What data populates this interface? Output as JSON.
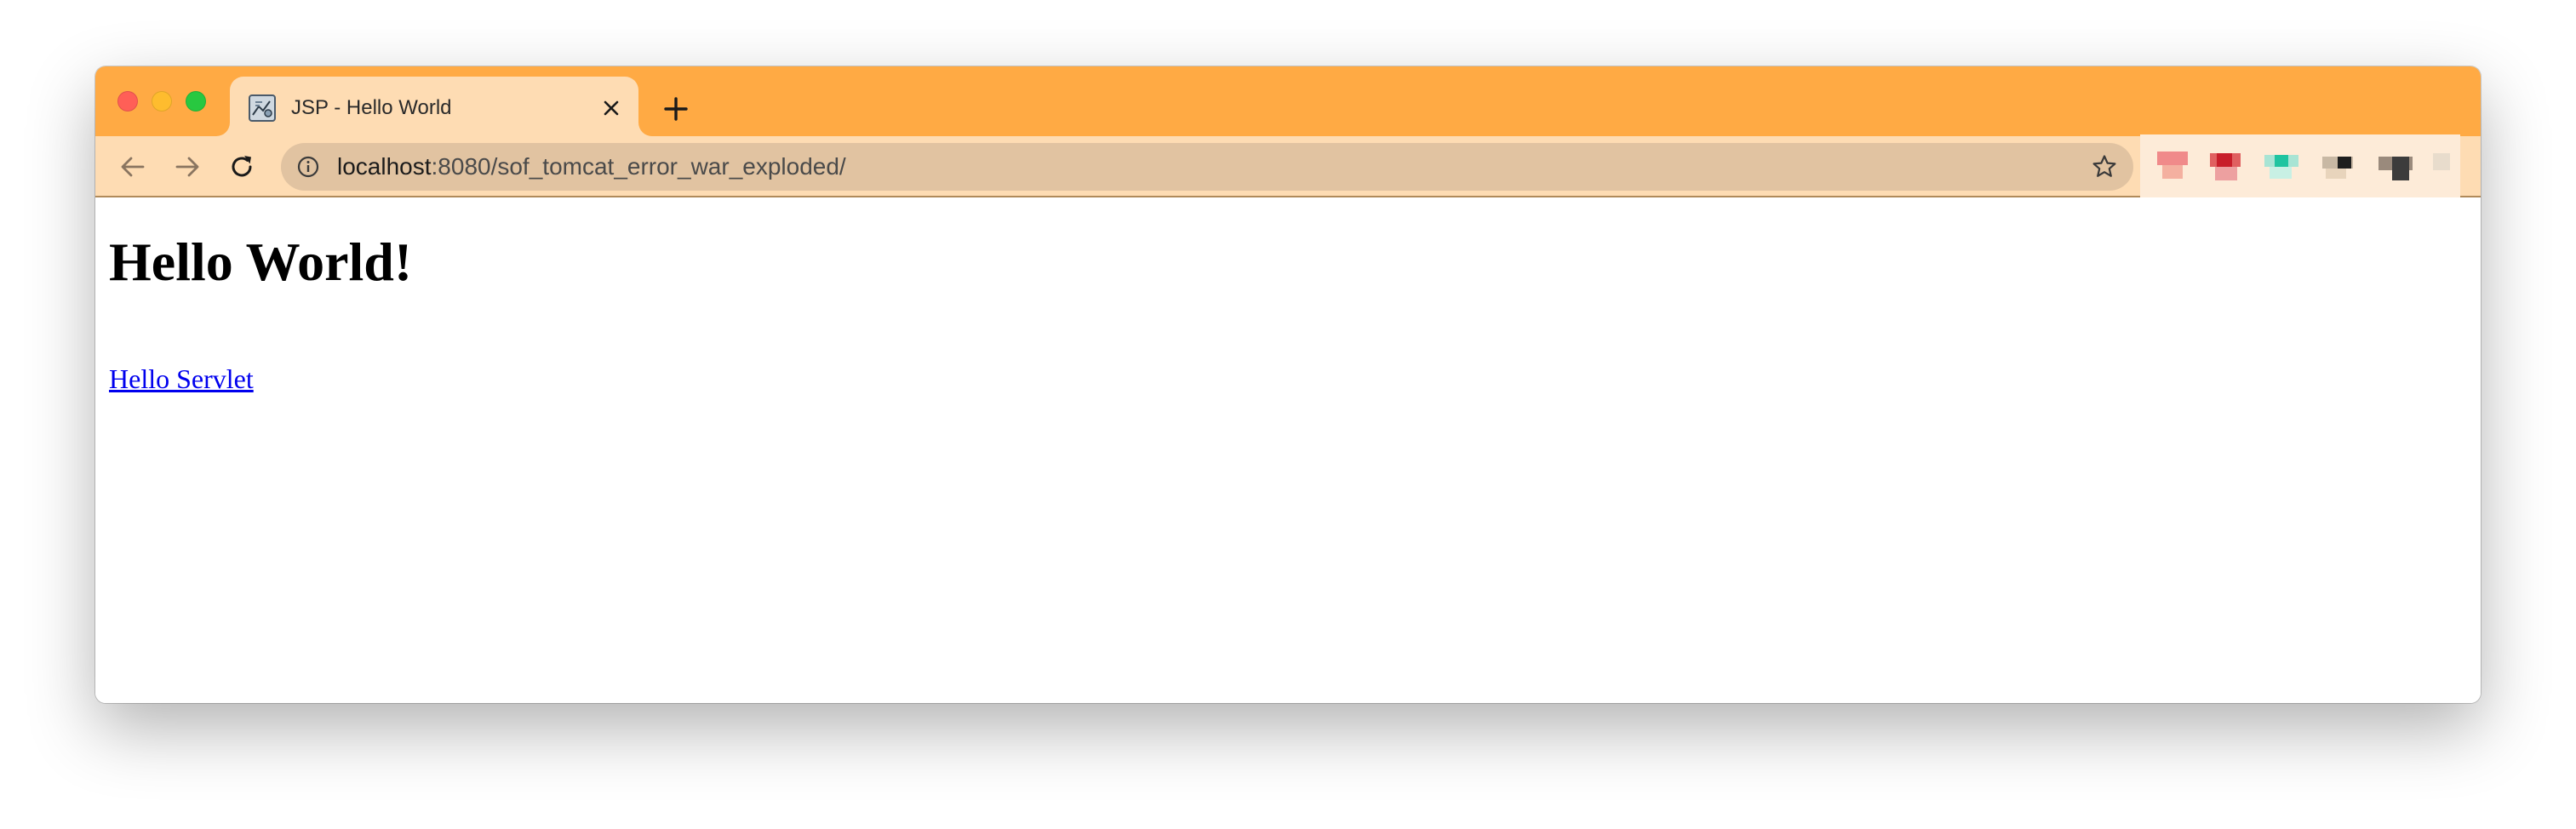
{
  "browser": {
    "tab": {
      "title": "JSP - Hello World",
      "favicon": "tomcat-icon"
    },
    "address_bar": {
      "host": "localhost",
      "path": ":8080/sof_tomcat_error_war_exploded/"
    },
    "colors": {
      "tab_strip": "#ffaa44",
      "toolbar": "#fedcb3",
      "omnibox": "#e1c3a1"
    },
    "icons": {
      "back": "back-arrow-icon",
      "forward": "forward-arrow-icon",
      "reload": "reload-icon",
      "site_info": "info-icon",
      "bookmark": "star-icon",
      "new_tab": "plus-icon",
      "close_tab": "close-icon"
    }
  },
  "page": {
    "heading": "Hello World!",
    "link_text": "Hello Servlet",
    "link_color": "#0000ee"
  }
}
